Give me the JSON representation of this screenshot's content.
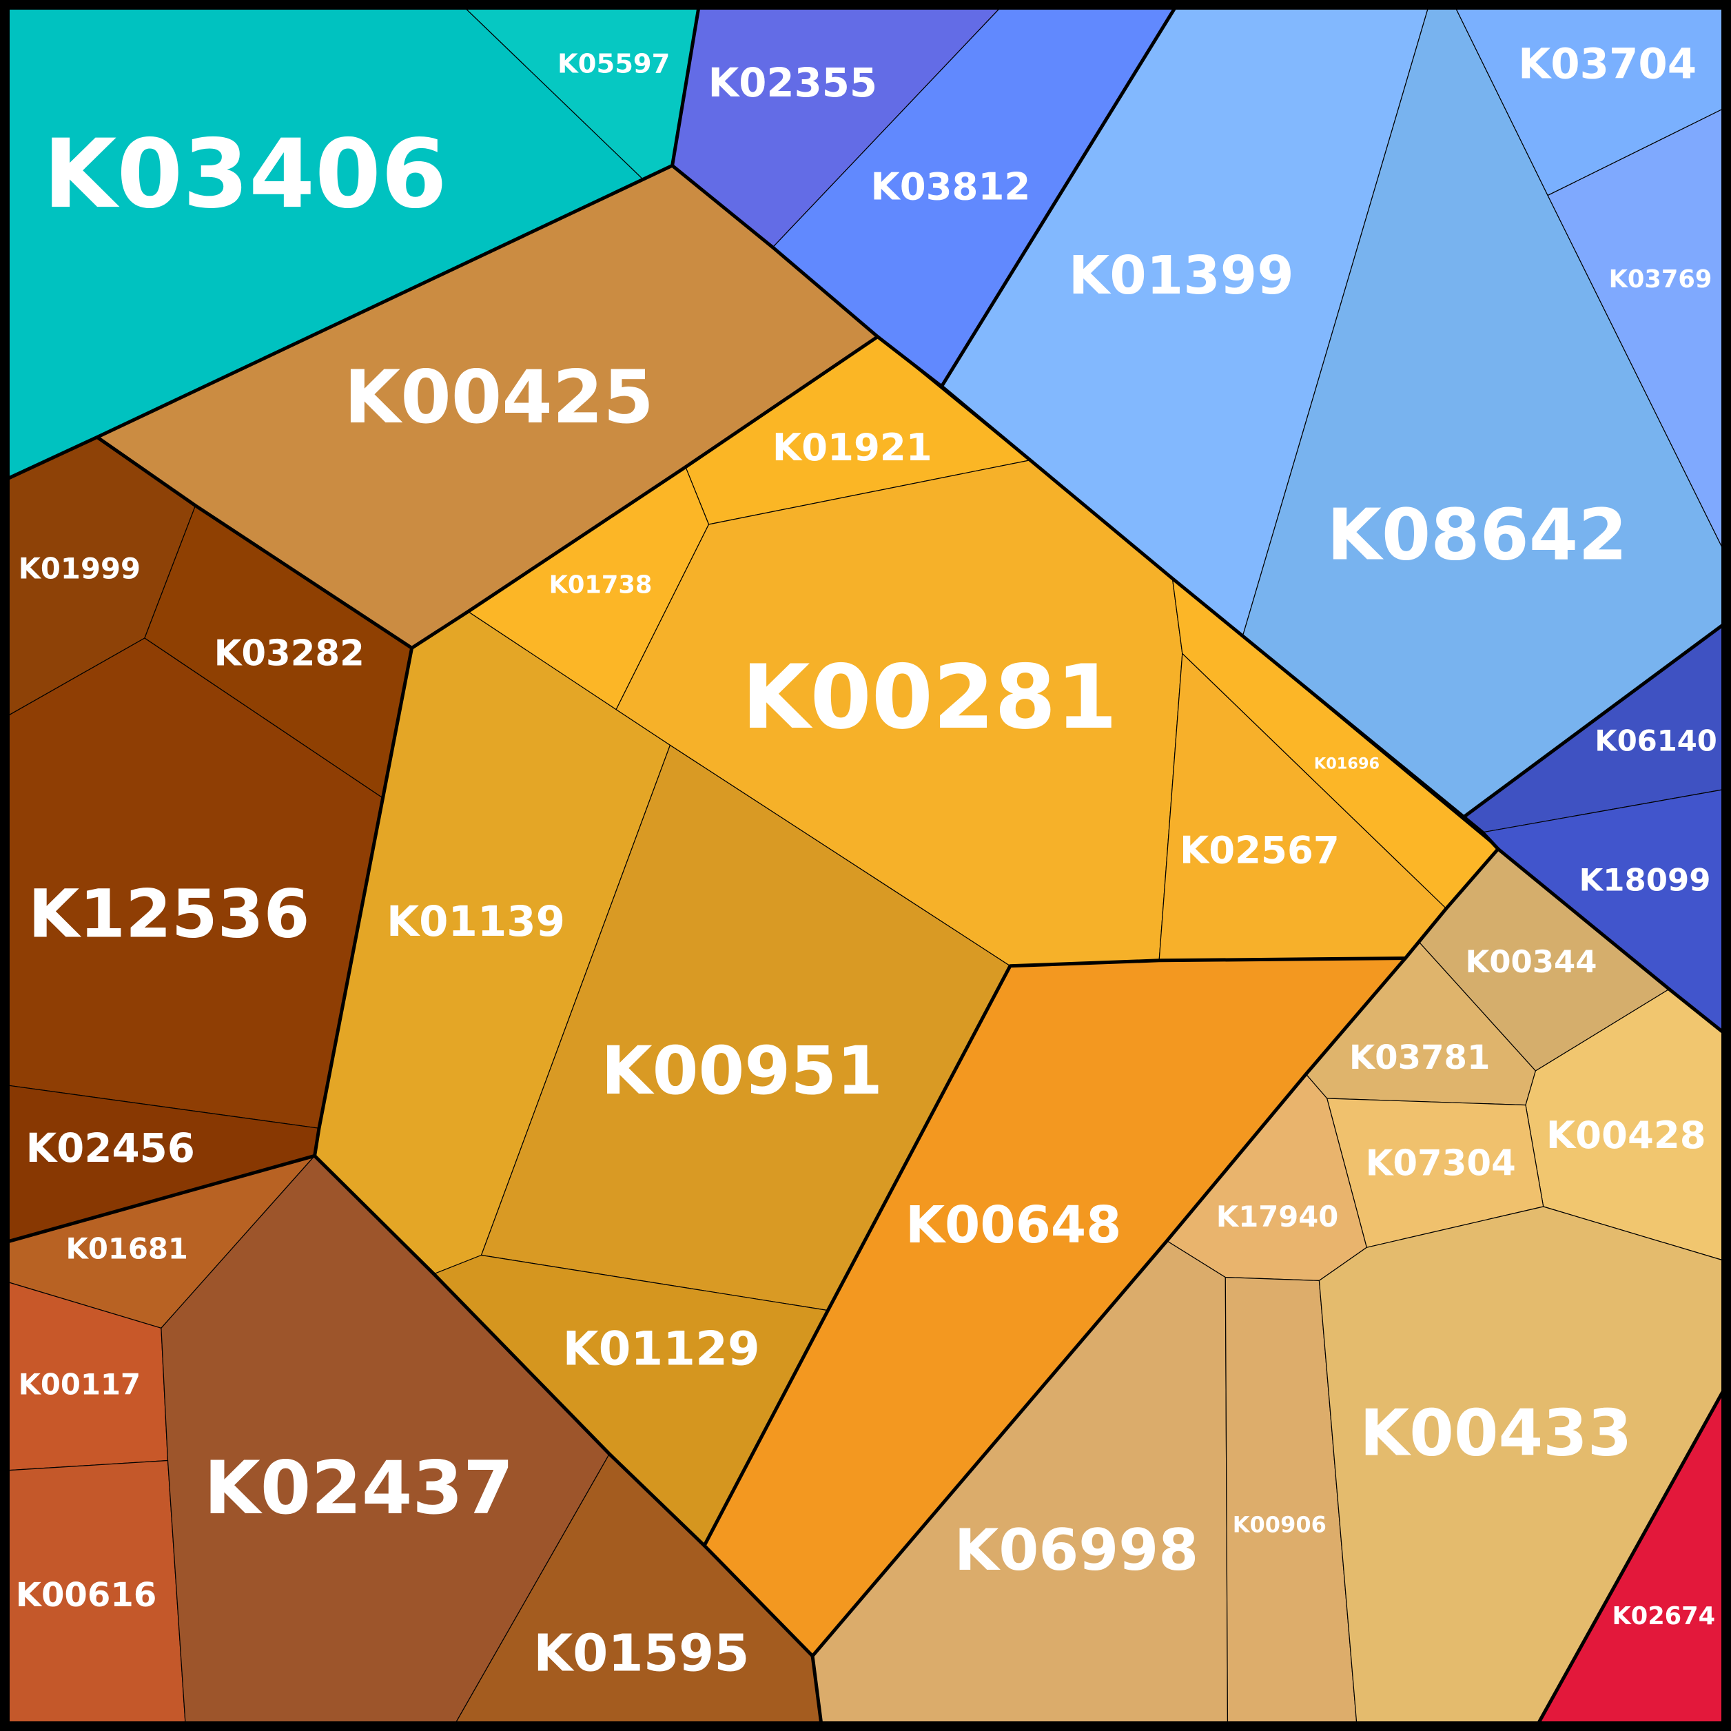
{
  "cells": [
    {
      "id": "K03406",
      "label": "K03406",
      "color": "#00c2c0"
    },
    {
      "id": "K05597",
      "label": "K05597",
      "color": "#06c8c2"
    },
    {
      "id": "K02355",
      "label": "K02355",
      "color": "#636ce6"
    },
    {
      "id": "K03812",
      "label": "K03812",
      "color": "#6189fe"
    },
    {
      "id": "K01399",
      "label": "K01399",
      "color": "#82b8fe"
    },
    {
      "id": "K08642",
      "label": "K08642",
      "color": "#78b3ef"
    },
    {
      "id": "K03704",
      "label": "K03704",
      "color": "#7ab0fe"
    },
    {
      "id": "K03769",
      "label": "K03769",
      "color": "#7fa9fe"
    },
    {
      "id": "K06140",
      "label": "K06140",
      "color": "#3f52c2"
    },
    {
      "id": "K18099",
      "label": "K18099",
      "color": "#4155cc"
    },
    {
      "id": "K00425",
      "label": "K00425",
      "color": "#cb8c42"
    },
    {
      "id": "K01999",
      "label": "K01999",
      "color": "#8e4207"
    },
    {
      "id": "K03282",
      "label": "K03282",
      "color": "#8f4002"
    },
    {
      "id": "K12536",
      "label": "K12536",
      "color": "#8f3e04"
    },
    {
      "id": "K02456",
      "label": "K02456",
      "color": "#883802"
    },
    {
      "id": "K01921",
      "label": "K01921",
      "color": "#fbb625"
    },
    {
      "id": "K01738",
      "label": "K01738",
      "color": "#fcb626"
    },
    {
      "id": "K00281",
      "label": "K00281",
      "color": "#f6b129"
    },
    {
      "id": "K01696",
      "label": "K01696",
      "color": "#fcb627"
    },
    {
      "id": "K02567",
      "label": "K02567",
      "color": "#f7b02a"
    },
    {
      "id": "K01139",
      "label": "K01139",
      "color": "#e4a626"
    },
    {
      "id": "K00951",
      "label": "K00951",
      "color": "#d99a24"
    },
    {
      "id": "K01129",
      "label": "K01129",
      "color": "#d5961f"
    },
    {
      "id": "K00648",
      "label": "K00648",
      "color": "#f39820"
    },
    {
      "id": "K01681",
      "label": "K01681",
      "color": "#b86223"
    },
    {
      "id": "K00117",
      "label": "K00117",
      "color": "#c85829"
    },
    {
      "id": "K00616",
      "label": "K00616",
      "color": "#c4582a"
    },
    {
      "id": "K02437",
      "label": "K02437",
      "color": "#9d552b"
    },
    {
      "id": "K01595",
      "label": "K01595",
      "color": "#a45c1f"
    },
    {
      "id": "K00344",
      "label": "K00344",
      "color": "#d5ae6c"
    },
    {
      "id": "K03781",
      "label": "K03781",
      "color": "#dfb46c"
    },
    {
      "id": "K00428",
      "label": "K00428",
      "color": "#f1c66f"
    },
    {
      "id": "K07304",
      "label": "K07304",
      "color": "#f0c16d"
    },
    {
      "id": "K17940",
      "label": "K17940",
      "color": "#e9b46d"
    },
    {
      "id": "K06998",
      "label": "K06998",
      "color": "#dbac6b"
    },
    {
      "id": "K00906",
      "label": "K00906",
      "color": "#ddad6b"
    },
    {
      "id": "K00433",
      "label": "K00433",
      "color": "#e4bb6d"
    },
    {
      "id": "K02674",
      "label": "K02674",
      "color": "#e3183b"
    }
  ]
}
